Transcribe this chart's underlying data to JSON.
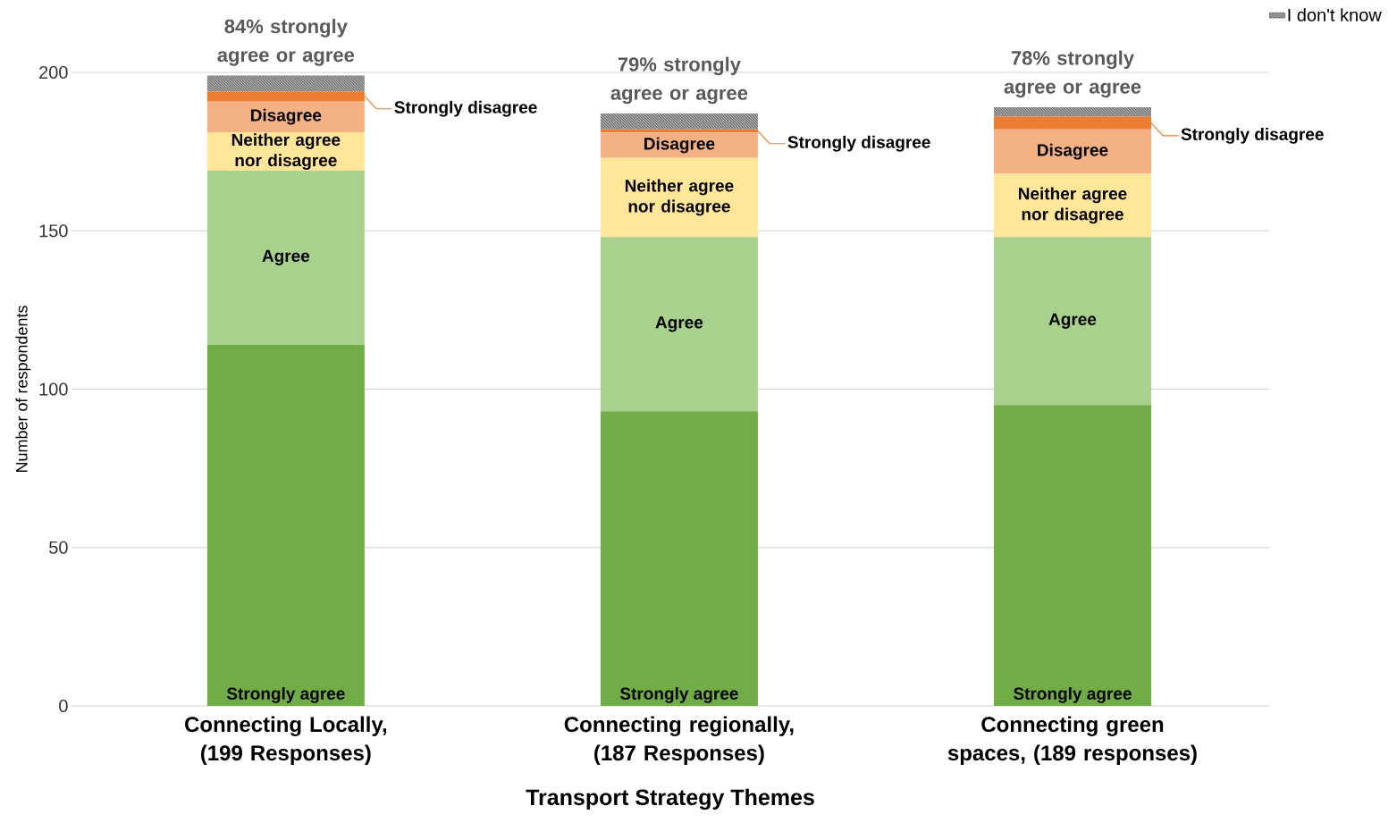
{
  "chart_data": {
    "type": "bar",
    "stacked": true,
    "xlabel": "Transport Strategy Themes",
    "ylabel": "Number of respondents",
    "categories": [
      "Connecting Locally, (199 Responses)",
      "Connecting regionally, (187 Responses)",
      "Connecting green spaces, (189 responses)"
    ],
    "series": [
      {
        "name": "Strongly agree",
        "color": "#70ad47",
        "values": [
          114,
          93,
          95
        ]
      },
      {
        "name": "Agree",
        "color": "#a9d18e",
        "values": [
          55,
          55,
          53
        ]
      },
      {
        "name": "Neither agree nor disagree",
        "color": "#ffe699",
        "values": [
          12,
          25,
          20
        ]
      },
      {
        "name": "Disagree",
        "color": "#f4b183",
        "values": [
          10,
          8,
          14
        ]
      },
      {
        "name": "Strongly disagree",
        "color": "#ed7d31",
        "values": [
          3,
          1,
          4
        ]
      },
      {
        "name": "I don't know",
        "color": "#7f7f7f",
        "values": [
          5,
          5,
          3
        ]
      }
    ],
    "annotations": [
      "84% strongly agree or agree",
      "79% strongly agree or agree",
      "78% strongly agree or agree"
    ],
    "ylim": [
      0,
      200
    ],
    "yticks": [
      0,
      50,
      100,
      150,
      200
    ],
    "grid": "y",
    "legend": "top right"
  }
}
